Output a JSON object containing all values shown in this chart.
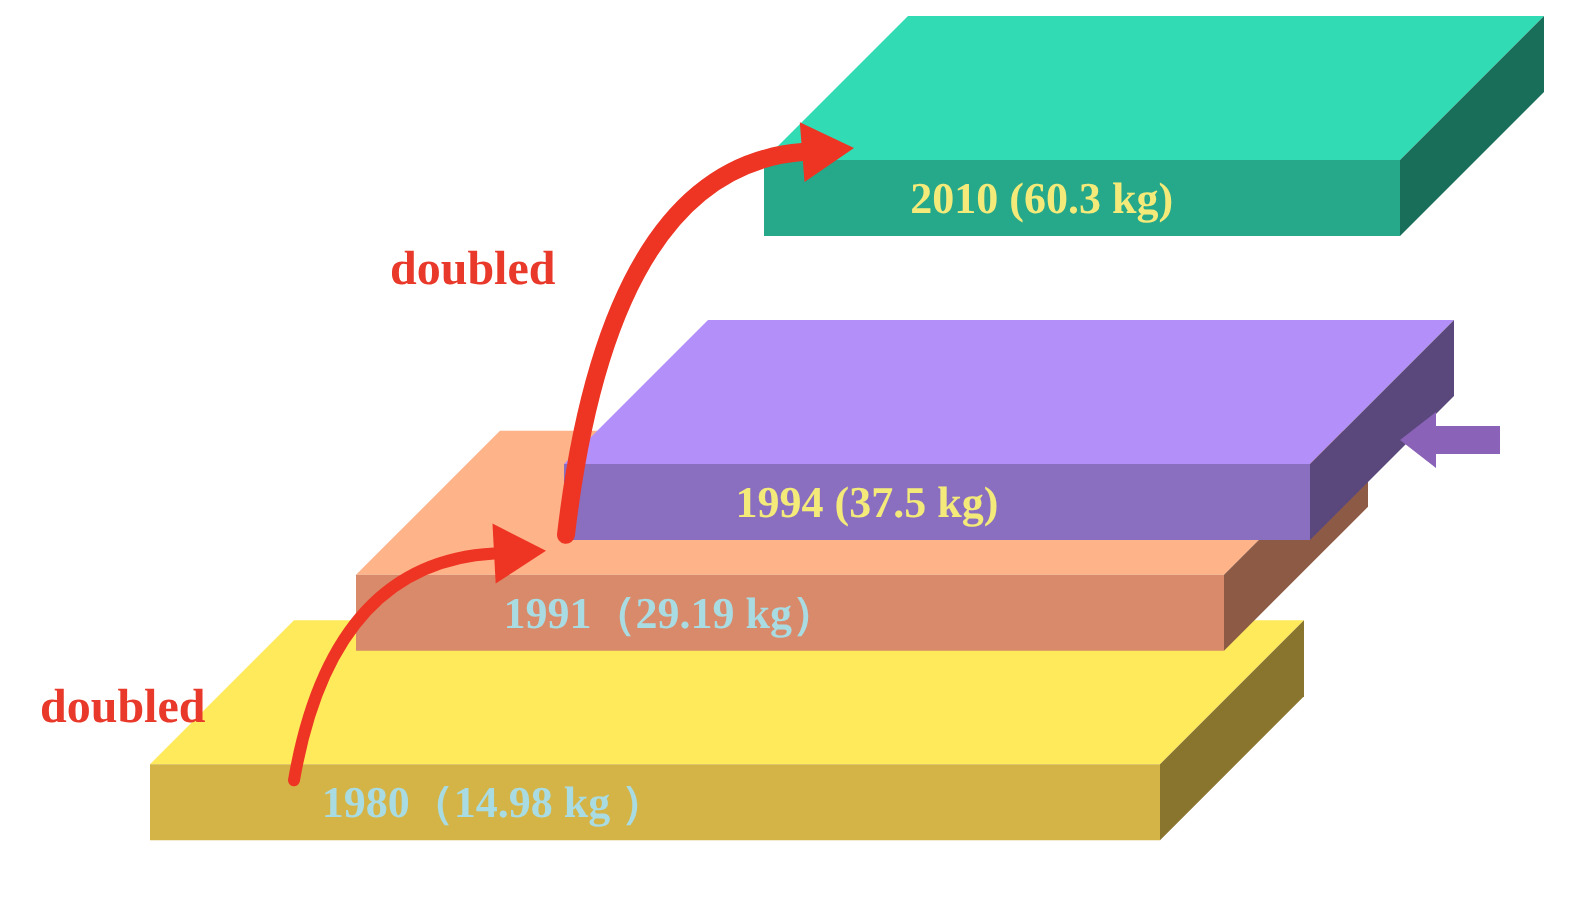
{
  "chart_data": {
    "type": "other",
    "categories": [
      "1980",
      "1991",
      "1994",
      "2010"
    ],
    "values": [
      14.98,
      29.19,
      37.5,
      60.3
    ],
    "value_labels": [
      "（14.98 kg ）",
      "（29.19 kg）",
      " (37.5 kg)",
      " (60.3 kg)"
    ],
    "colors": [
      "#d4b446",
      "#d98a6a",
      "#8a6fc0",
      "#26a98a"
    ],
    "annotations": [
      "doubled",
      "doubled"
    ]
  }
}
